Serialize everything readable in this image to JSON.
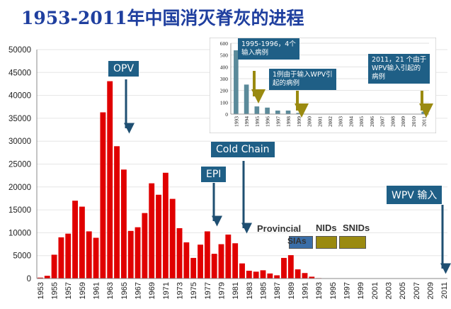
{
  "title": "1953-2011年中国消灭脊灰的进程",
  "chart_data": [
    {
      "type": "bar",
      "id": "main",
      "ylim": [
        0,
        50000
      ],
      "yticks": [
        0,
        5000,
        10000,
        15000,
        20000,
        25000,
        30000,
        35000,
        40000,
        45000,
        50000
      ],
      "categories": [
        "1953",
        "1954",
        "1955",
        "1956",
        "1957",
        "1958",
        "1959",
        "1960",
        "1961",
        "1962",
        "1963",
        "1964",
        "1965",
        "1966",
        "1967",
        "1968",
        "1969",
        "1970",
        "1971",
        "1972",
        "1973",
        "1974",
        "1975",
        "1976",
        "1977",
        "1978",
        "1979",
        "1980",
        "1981",
        "1982",
        "1983",
        "1984",
        "1985",
        "1986",
        "1987",
        "1988",
        "1989",
        "1990",
        "1991",
        "1992",
        "1993",
        "1994",
        "1995",
        "1996",
        "1997",
        "1998",
        "1999",
        "2000",
        "2001",
        "2002",
        "2003",
        "2004",
        "2005",
        "2006",
        "2007",
        "2008",
        "2009",
        "2010",
        "2011"
      ],
      "xtick_labels": [
        "1953",
        "1955",
        "1957",
        "1959",
        "1961",
        "1963",
        "1965",
        "1967",
        "1969",
        "1971",
        "1973",
        "1975",
        "1977",
        "1979",
        "1981",
        "1983",
        "1985",
        "1987",
        "1989",
        "1991",
        "1993",
        "1995",
        "1997",
        "1999",
        "2001",
        "2003",
        "2005",
        "2007",
        "2009",
        "2011"
      ],
      "values": [
        200,
        600,
        5200,
        9000,
        9800,
        17000,
        15700,
        10300,
        8900,
        36300,
        43100,
        28900,
        23800,
        10400,
        11200,
        14300,
        20800,
        18300,
        23100,
        17400,
        11000,
        7900,
        4500,
        7400,
        10300,
        5400,
        7500,
        9600,
        7700,
        3300,
        1700,
        1500,
        1800,
        1100,
        700,
        4500,
        5100,
        2000,
        1200,
        400,
        100,
        0,
        0,
        0,
        0,
        0,
        0,
        0,
        0,
        0,
        0,
        0,
        0,
        0,
        0,
        0,
        0,
        0,
        0
      ],
      "color": "#e00000"
    },
    {
      "type": "bar",
      "id": "inset",
      "ylim": [
        0,
        600
      ],
      "yticks": [
        0,
        100,
        200,
        300,
        400,
        500,
        600
      ],
      "categories": [
        "1993",
        "1994",
        "1995",
        "1996",
        "1997",
        "1998",
        "1999",
        "2000",
        "2001",
        "2002",
        "2003",
        "2004",
        "2005",
        "2006",
        "2007",
        "2008",
        "2009",
        "2010",
        "2011"
      ],
      "values": [
        540,
        250,
        65,
        55,
        30,
        30,
        10,
        0,
        0,
        0,
        0,
        0,
        0,
        0,
        0,
        0,
        0,
        0,
        21
      ],
      "color": "#5b8a9a"
    }
  ],
  "annotations": {
    "opv": "OPV",
    "epi": "EPI",
    "cold_chain": "Cold Chain",
    "wpv_import": "WPV 输入",
    "provincial": "Provincial",
    "sias": "SIAs",
    "nids": "NIDs",
    "snids": "SNIDs",
    "inset_1995_line1": "1995-1996，4个",
    "inset_1995_line2": "输入病例",
    "inset_one_line1": "1例由于输入WPV引",
    "inset_one_line2": "起的病例",
    "inset_2011_line1": "2011，21 个由于",
    "inset_2011_line2": "WPV输入引起的",
    "inset_2011_line3": "病例"
  },
  "colors": {
    "title": "#1f3f9f",
    "callout_bg": "#1f5f86",
    "arrow_main": "#1f4f72",
    "arrow_inset": "#9a8a10",
    "bar_main": "#e00000",
    "bar_inset": "#5b8a9a",
    "sia_box": "#3a6ea8",
    "nid_box": "#9a8a10"
  }
}
